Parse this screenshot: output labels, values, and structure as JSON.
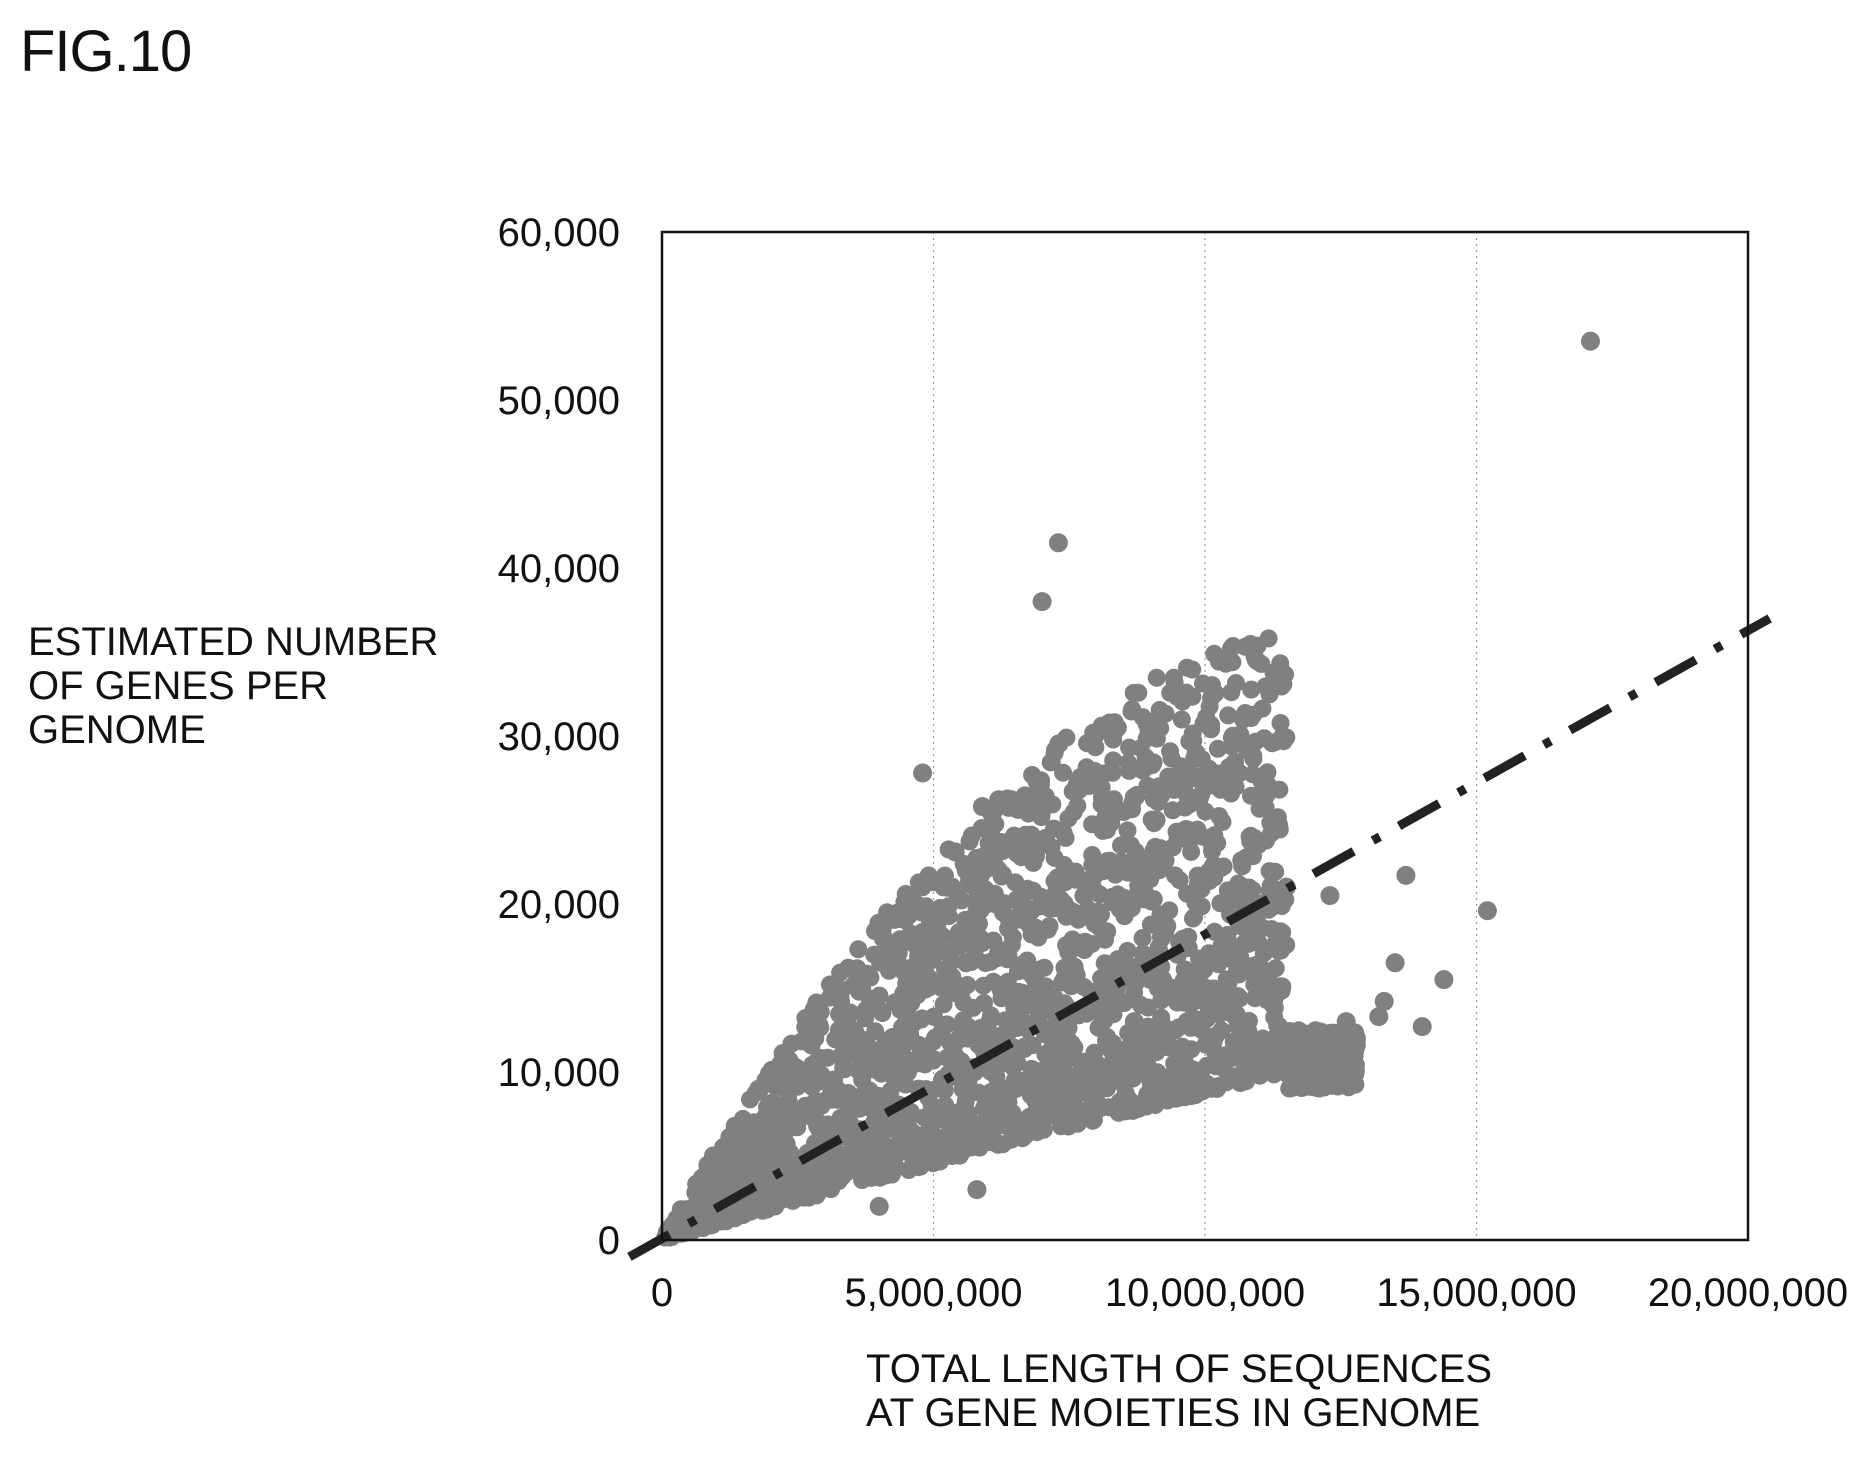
{
  "figure_label": "FIG.10",
  "chart_data": {
    "type": "scatter",
    "ylabel_lines": [
      "ESTIMATED NUMBER",
      "OF GENES PER",
      "GENOME"
    ],
    "xlabel_lines": [
      "TOTAL LENGTH OF SEQUENCES",
      "AT GENE MOIETIES IN GENOME"
    ],
    "xlim": [
      0,
      20000000
    ],
    "ylim": [
      0,
      60000
    ],
    "x_ticks": [
      0,
      5000000,
      10000000,
      15000000,
      20000000
    ],
    "x_tick_labels": [
      "0",
      "5,000,000",
      "10,000,000",
      "15,000,000",
      "20,000,000"
    ],
    "y_ticks": [
      0,
      10000,
      20000,
      30000,
      40000,
      50000,
      60000
    ],
    "y_tick_labels": [
      "0",
      "10,000",
      "20,000",
      "30,000",
      "40,000",
      "50,000",
      "60,000"
    ],
    "grid": "vertical dotted",
    "point_color": "#808080",
    "trend_color": "#222222",
    "trend_line": {
      "style": "dash-dot",
      "x": [
        -600000,
        20400000
      ],
      "y": [
        -1000,
        37000
      ]
    },
    "outliers": [
      [
        17100000,
        53500
      ],
      [
        7300000,
        41500
      ],
      [
        7000000,
        38000
      ],
      [
        4800000,
        27800
      ],
      [
        6200000,
        26200
      ],
      [
        5900000,
        25800
      ],
      [
        6100000,
        25500
      ],
      [
        6800000,
        24100
      ],
      [
        8500000,
        25500
      ],
      [
        9100000,
        25000
      ],
      [
        5400000,
        23100
      ],
      [
        8900000,
        22100
      ],
      [
        10700000,
        21000
      ],
      [
        11200000,
        20800
      ],
      [
        11500000,
        21000
      ],
      [
        12300000,
        20500
      ],
      [
        13700000,
        21700
      ],
      [
        15200000,
        19600
      ],
      [
        5800000,
        19600
      ],
      [
        6800000,
        19600
      ],
      [
        9500000,
        17000
      ],
      [
        10200000,
        17000
      ],
      [
        7500000,
        17200
      ],
      [
        5600000,
        16500
      ],
      [
        3600000,
        15500
      ],
      [
        8200000,
        15200
      ],
      [
        8600000,
        16000
      ],
      [
        9000000,
        15500
      ],
      [
        10000000,
        15000
      ],
      [
        10900000,
        16300
      ],
      [
        11300000,
        14800
      ],
      [
        13500000,
        16500
      ],
      [
        14400000,
        15500
      ],
      [
        13300000,
        14200
      ],
      [
        14000000,
        12700
      ],
      [
        13200000,
        13300
      ],
      [
        5800000,
        3000
      ],
      [
        4000000,
        2000
      ],
      [
        3400000,
        12700
      ],
      [
        7600000,
        16000
      ],
      [
        8700000,
        13000
      ],
      [
        12600000,
        13000
      ],
      [
        12700000,
        11000
      ],
      [
        12400000,
        10600
      ]
    ],
    "cloud": {
      "x_range": [
        50000,
        12800000
      ],
      "y_over_x_at_origin": [
        0.00095,
        0.0052
      ],
      "slope_low_band": [
        0.00085,
        0.0022
      ],
      "n_points": 2200
    }
  }
}
